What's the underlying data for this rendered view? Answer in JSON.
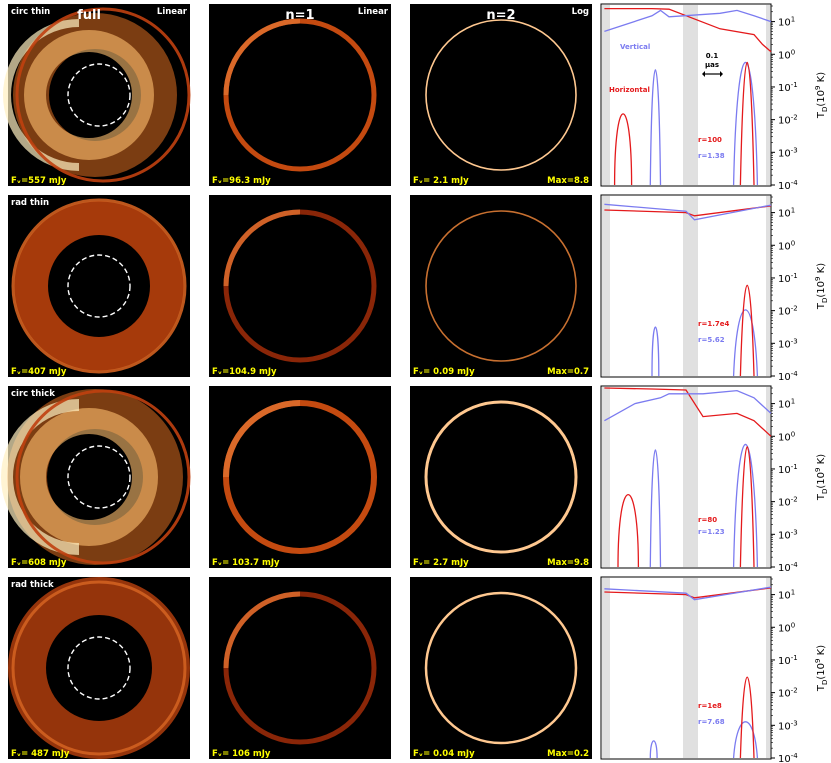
{
  "column_titles": [
    "full",
    "n=1",
    "n=2"
  ],
  "scale_labels": [
    "Linear",
    "Linear",
    "Log"
  ],
  "rows": [
    {
      "label": "circ thin",
      "flux": [
        "Fᵥ=557 mJy",
        "Fᵥ=96.3 mJy",
        "Fᵥ= 2.1 mJy"
      ],
      "max": "Max=8.8",
      "r_red": "r=100",
      "r_blue": "r=1.38",
      "legend_vertical": "Vertical",
      "legend_horizontal": "Horizontal",
      "scale_bar_label_1": "0.1",
      "scale_bar_label_2": "μas"
    },
    {
      "label": "rad thin",
      "flux": [
        "Fᵥ=407 mJy",
        "Fᵥ=104.9 mJy",
        "Fᵥ= 0.09 mJy"
      ],
      "max": "Max=0.7",
      "r_red": "r=1.7e4",
      "r_blue": "r=5.62"
    },
    {
      "label": "circ thick",
      "flux": [
        "Fᵥ=608 mJy",
        "Fᵥ= 103.7 mJy",
        "Fᵥ= 2.7 mJy"
      ],
      "max": "Max=9.8",
      "r_red": "r=80",
      "r_blue": "r=1.23"
    },
    {
      "label": "rad thick",
      "flux": [
        "Fᵥ= 487 mJy",
        "Fᵥ= 106 mJy",
        "Fᵥ= 0.04 mJy"
      ],
      "max": "Max=0.2",
      "r_red": "r=1e8",
      "r_blue": "r=7.68"
    }
  ],
  "y_axis": {
    "label": "T_D(10^9 K)",
    "label_display": "T",
    "label_sub": "D",
    "label_rest": "(10",
    "label_exp": "9",
    "label_end": " K)",
    "ticks": [
      "10¹",
      "10⁰",
      "10⁻¹",
      "10⁻²",
      "10⁻³",
      "10⁻⁴"
    ],
    "tick_base": "10",
    "tick_exps": [
      "1",
      "0",
      "-1",
      "-2",
      "-3",
      "-4"
    ],
    "ylim": [
      0.0001,
      30
    ],
    "scale": "log"
  },
  "colors": {
    "red_series": "#e41a1c",
    "blue_series": "#7b7bf0",
    "label_text": "#ffff00",
    "shade": "#e0e0e0"
  },
  "chart_data": [
    {
      "type": "line",
      "title": "circ thin",
      "series": [
        {
          "name": "Horizontal",
          "color": "red",
          "values": [
            [
              0.02,
              25
            ],
            [
              0.3,
              25
            ],
            [
              0.4,
              24
            ],
            [
              0.7,
              6
            ],
            [
              0.9,
              4
            ],
            [
              0.95,
              2
            ],
            [
              1,
              1.2
            ]
          ]
        },
        {
          "name": "Vertical",
          "color": "blue",
          "values": [
            [
              0.02,
              5
            ],
            [
              0.3,
              15
            ],
            [
              0.35,
              22
            ],
            [
              0.4,
              14
            ],
            [
              0.7,
              18
            ],
            [
              0.8,
              22
            ],
            [
              0.9,
              15
            ],
            [
              1,
              10
            ]
          ]
        }
      ]
    },
    {
      "type": "line",
      "title": "rad thin",
      "series": [
        {
          "name": "Horizontal",
          "color": "red",
          "values": [
            [
              0.02,
              12
            ],
            [
              0.5,
              10
            ],
            [
              0.55,
              8
            ],
            [
              1,
              16
            ]
          ]
        },
        {
          "name": "Vertical",
          "color": "blue",
          "values": [
            [
              0.02,
              18
            ],
            [
              0.5,
              11
            ],
            [
              0.55,
              6
            ],
            [
              1,
              17
            ]
          ]
        }
      ]
    },
    {
      "type": "line",
      "title": "circ thick",
      "series": [
        {
          "name": "Horizontal",
          "color": "red",
          "values": [
            [
              0.02,
              30
            ],
            [
              0.3,
              28
            ],
            [
              0.5,
              26
            ],
            [
              0.6,
              4
            ],
            [
              0.8,
              5
            ],
            [
              0.9,
              3
            ],
            [
              1,
              1
            ]
          ]
        },
        {
          "name": "Vertical",
          "color": "blue",
          "values": [
            [
              0.02,
              3
            ],
            [
              0.2,
              10
            ],
            [
              0.35,
              15
            ],
            [
              0.4,
              20
            ],
            [
              0.6,
              20
            ],
            [
              0.8,
              25
            ],
            [
              0.9,
              15
            ],
            [
              1,
              5
            ]
          ]
        }
      ]
    },
    {
      "type": "line",
      "title": "rad thick",
      "series": [
        {
          "name": "Horizontal",
          "color": "red",
          "values": [
            [
              0.02,
              12
            ],
            [
              0.5,
              10
            ],
            [
              0.55,
              8
            ],
            [
              1,
              16
            ]
          ]
        },
        {
          "name": "Vertical",
          "color": "blue",
          "values": [
            [
              0.02,
              15
            ],
            [
              0.5,
              11
            ],
            [
              0.55,
              7
            ],
            [
              1,
              17
            ]
          ]
        }
      ]
    }
  ]
}
